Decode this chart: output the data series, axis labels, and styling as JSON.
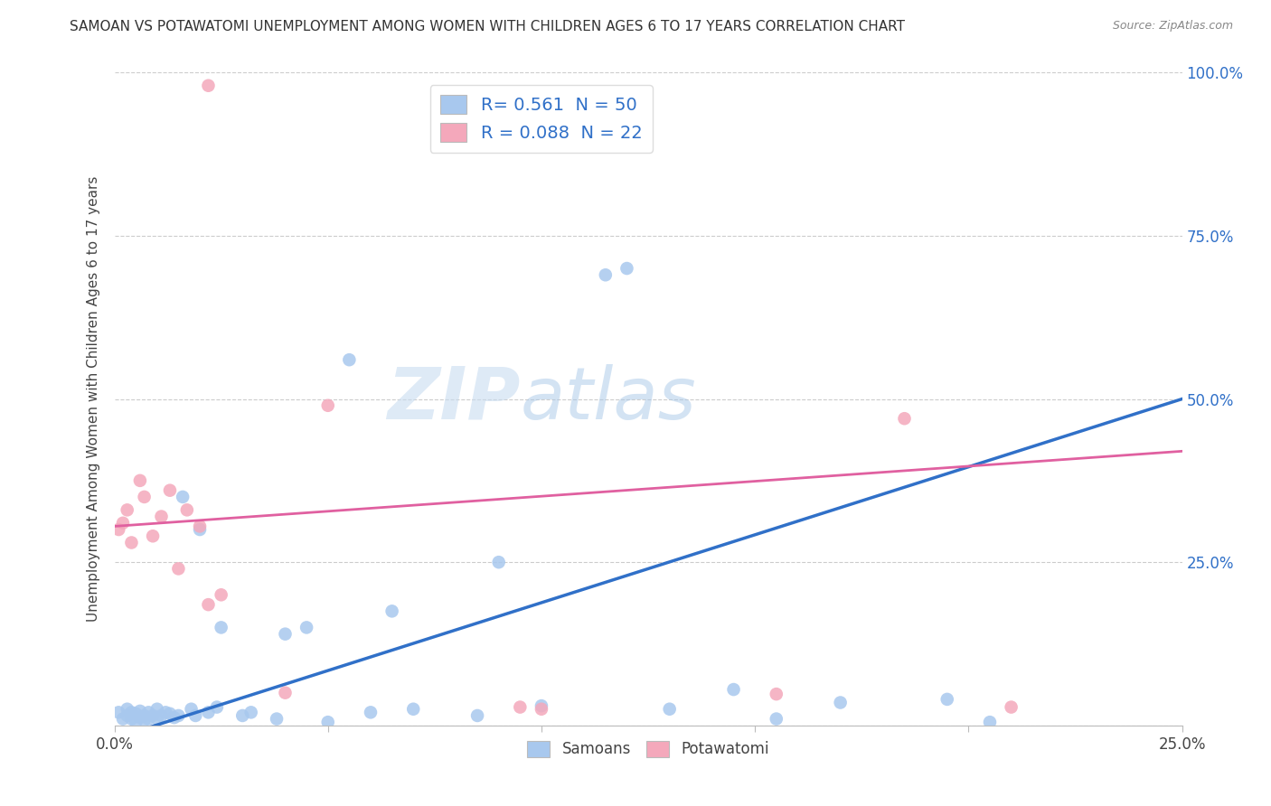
{
  "title": "SAMOAN VS POTAWATOMI UNEMPLOYMENT AMONG WOMEN WITH CHILDREN AGES 6 TO 17 YEARS CORRELATION CHART",
  "source": "Source: ZipAtlas.com",
  "ylabel": "Unemployment Among Women with Children Ages 6 to 17 years",
  "xlim": [
    0.0,
    0.25
  ],
  "ylim": [
    0.0,
    1.0
  ],
  "xticks": [
    0.0,
    0.05,
    0.1,
    0.15,
    0.2,
    0.25
  ],
  "yticks": [
    0.0,
    0.25,
    0.5,
    0.75,
    1.0
  ],
  "xtick_labels": [
    "0.0%",
    "",
    "",
    "",
    "",
    "25.0%"
  ],
  "ytick_labels": [
    "",
    "25.0%",
    "50.0%",
    "75.0%",
    "100.0%"
  ],
  "samoan_color": "#A8C8EE",
  "potawatomi_color": "#F4A8BB",
  "samoan_line_color": "#3070C8",
  "potawatomi_line_color": "#E060A0",
  "legend_r_samoan": "0.561",
  "legend_n_samoan": "50",
  "legend_r_potawatomi": "0.088",
  "legend_n_potawatomi": "22",
  "watermark_zip": "ZIP",
  "watermark_atlas": "atlas",
  "background_color": "#FFFFFF",
  "grid_color": "#CCCCCC",
  "samoans_x": [
    0.001,
    0.002,
    0.003,
    0.003,
    0.004,
    0.004,
    0.005,
    0.005,
    0.006,
    0.006,
    0.007,
    0.007,
    0.008,
    0.008,
    0.009,
    0.01,
    0.01,
    0.011,
    0.012,
    0.013,
    0.014,
    0.015,
    0.016,
    0.018,
    0.019,
    0.02,
    0.022,
    0.024,
    0.025,
    0.03,
    0.032,
    0.038,
    0.04,
    0.045,
    0.05,
    0.055,
    0.06,
    0.065,
    0.07,
    0.085,
    0.09,
    0.1,
    0.115,
    0.12,
    0.13,
    0.145,
    0.155,
    0.17,
    0.195,
    0.205
  ],
  "samoans_y": [
    0.02,
    0.01,
    0.015,
    0.025,
    0.01,
    0.02,
    0.005,
    0.018,
    0.012,
    0.022,
    0.008,
    0.015,
    0.01,
    0.02,
    0.015,
    0.01,
    0.025,
    0.015,
    0.02,
    0.018,
    0.012,
    0.015,
    0.35,
    0.025,
    0.015,
    0.3,
    0.02,
    0.028,
    0.15,
    0.015,
    0.02,
    0.01,
    0.14,
    0.15,
    0.005,
    0.56,
    0.02,
    0.175,
    0.025,
    0.015,
    0.25,
    0.03,
    0.69,
    0.7,
    0.025,
    0.055,
    0.01,
    0.035,
    0.04,
    0.005
  ],
  "potawatomi_x": [
    0.001,
    0.002,
    0.003,
    0.004,
    0.006,
    0.007,
    0.009,
    0.011,
    0.013,
    0.015,
    0.017,
    0.02,
    0.022,
    0.025,
    0.04,
    0.05,
    0.095,
    0.1,
    0.155,
    0.185,
    0.21,
    0.022
  ],
  "potawatomi_y": [
    0.3,
    0.31,
    0.33,
    0.28,
    0.375,
    0.35,
    0.29,
    0.32,
    0.36,
    0.24,
    0.33,
    0.305,
    0.185,
    0.2,
    0.05,
    0.49,
    0.028,
    0.025,
    0.048,
    0.47,
    0.028,
    0.98
  ],
  "samoan_trend_x": [
    0.0,
    0.25
  ],
  "samoan_trend_y": [
    -0.02,
    0.5
  ],
  "potawatomi_trend_x": [
    0.0,
    0.25
  ],
  "potawatomi_trend_y": [
    0.305,
    0.42
  ]
}
